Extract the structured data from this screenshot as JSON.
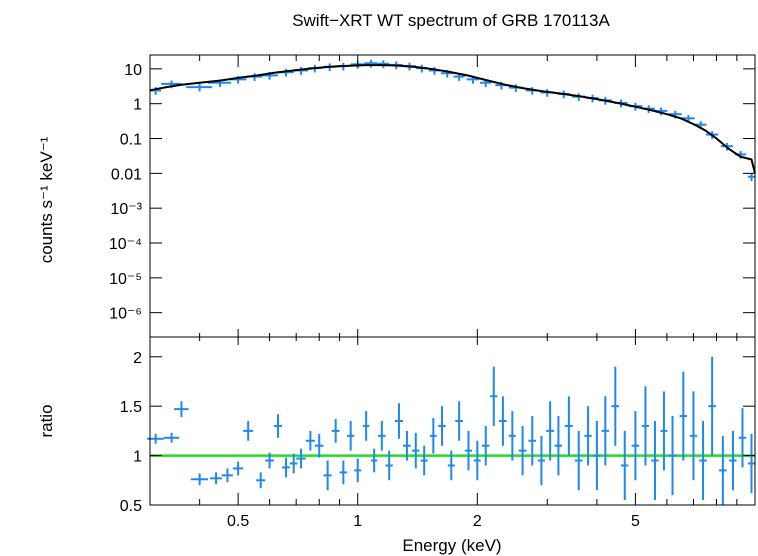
{
  "title": "Swift−XRT WT spectrum of GRB 170113A",
  "colors": {
    "data": "#1e88f0",
    "model": "#000000",
    "unity": "#22dd22",
    "axes": "#000000"
  },
  "chart_data": [
    {
      "type": "scatter",
      "panel": "spectrum",
      "title": "Swift−XRT WT spectrum of GRB 170113A",
      "ylabel": "counts s⁻¹ keV⁻¹",
      "xscale": "log",
      "yscale": "log",
      "xlim": [
        0.3,
        10
      ],
      "ylim": [
        2e-07,
        25
      ],
      "yticks": [
        {
          "value": 10,
          "label": "10"
        },
        {
          "value": 1,
          "label": "1"
        },
        {
          "value": 0.1,
          "label": "0.1"
        },
        {
          "value": 0.01,
          "label": "0.01"
        },
        {
          "value": 0.001,
          "label": "10⁻³"
        },
        {
          "value": 0.0001,
          "label": "10⁻⁴"
        },
        {
          "value": 1e-05,
          "label": "10⁻⁵"
        },
        {
          "value": 1e-06,
          "label": "10⁻⁶"
        }
      ],
      "series": [
        {
          "kind": "data",
          "x": [
            0.31,
            0.34,
            0.4,
            0.45,
            0.5,
            0.55,
            0.6,
            0.66,
            0.72,
            0.78,
            0.85,
            0.92,
            1.0,
            1.08,
            1.16,
            1.25,
            1.35,
            1.45,
            1.56,
            1.68,
            1.8,
            1.95,
            2.1,
            2.3,
            2.5,
            2.75,
            3.0,
            3.3,
            3.6,
            3.9,
            4.2,
            4.6,
            5.0,
            5.4,
            5.8,
            6.3,
            6.8,
            7.3,
            7.8,
            8.5,
            9.2,
            9.8
          ],
          "y": [
            2.4,
            3.7,
            3.0,
            4.0,
            5.0,
            6.0,
            6.5,
            8.0,
            9.0,
            10.5,
            11.5,
            12.0,
            13.5,
            14.5,
            14.0,
            13.0,
            12.0,
            10.5,
            9.0,
            7.5,
            6.0,
            5.0,
            4.0,
            3.4,
            2.9,
            2.4,
            2.1,
            1.9,
            1.6,
            1.45,
            1.25,
            1.05,
            0.85,
            0.72,
            0.62,
            0.5,
            0.38,
            0.25,
            0.13,
            0.06,
            0.035,
            0.008
          ],
          "xerr": [
            0.01,
            0.02,
            0.03,
            0.03,
            0.025,
            0.025,
            0.03,
            0.03,
            0.03,
            0.03,
            0.03,
            0.03,
            0.04,
            0.04,
            0.04,
            0.05,
            0.05,
            0.05,
            0.05,
            0.06,
            0.06,
            0.07,
            0.07,
            0.08,
            0.1,
            0.1,
            0.12,
            0.12,
            0.14,
            0.14,
            0.16,
            0.18,
            0.2,
            0.2,
            0.22,
            0.24,
            0.25,
            0.25,
            0.28,
            0.3,
            0.3,
            0.2
          ]
        },
        {
          "kind": "model",
          "x": [
            0.3,
            0.31,
            0.33,
            0.36,
            0.4,
            0.45,
            0.5,
            0.56,
            0.62,
            0.7,
            0.78,
            0.86,
            0.95,
            1.05,
            1.15,
            1.25,
            1.4,
            1.55,
            1.7,
            1.9,
            2.1,
            2.35,
            2.6,
            2.9,
            3.2,
            3.6,
            4.0,
            4.5,
            5.0,
            5.5,
            6.0,
            6.5,
            7.0,
            7.5,
            8.0,
            8.6,
            9.2,
            9.8,
            10.0
          ],
          "y": [
            2.4,
            2.6,
            3.0,
            3.5,
            4.0,
            4.6,
            5.5,
            6.5,
            7.8,
            9.2,
            10.5,
            11.6,
            12.3,
            12.8,
            12.8,
            12.5,
            11.3,
            9.8,
            8.2,
            6.4,
            4.8,
            3.5,
            2.8,
            2.3,
            2.0,
            1.65,
            1.35,
            1.05,
            0.82,
            0.64,
            0.5,
            0.38,
            0.26,
            0.17,
            0.1,
            0.05,
            0.03,
            0.025,
            0.01
          ]
        }
      ]
    },
    {
      "type": "scatter",
      "panel": "ratio",
      "xlabel": "Energy (keV)",
      "ylabel": "ratio",
      "xscale": "log",
      "xlim": [
        0.3,
        10
      ],
      "ylim": [
        0.5,
        2.2
      ],
      "xticks": [
        {
          "value": 0.5,
          "label": "0.5"
        },
        {
          "value": 1,
          "label": "1"
        },
        {
          "value": 2,
          "label": "2"
        },
        {
          "value": 5,
          "label": "5"
        }
      ],
      "yticks": [
        {
          "value": 0.5,
          "label": "0.5"
        },
        {
          "value": 1,
          "label": "1"
        },
        {
          "value": 1.5,
          "label": "1.5"
        },
        {
          "value": 2,
          "label": "2"
        }
      ],
      "reference_line": 1,
      "series": [
        {
          "kind": "data",
          "x": [
            0.31,
            0.34,
            0.36,
            0.4,
            0.44,
            0.47,
            0.5,
            0.53,
            0.57,
            0.6,
            0.63,
            0.66,
            0.69,
            0.72,
            0.76,
            0.8,
            0.84,
            0.88,
            0.92,
            0.96,
            1.0,
            1.05,
            1.1,
            1.15,
            1.2,
            1.27,
            1.33,
            1.4,
            1.47,
            1.55,
            1.63,
            1.72,
            1.8,
            1.9,
            2.0,
            2.1,
            2.2,
            2.32,
            2.45,
            2.6,
            2.75,
            2.9,
            3.05,
            3.2,
            3.4,
            3.6,
            3.8,
            4.0,
            4.2,
            4.45,
            4.7,
            5.0,
            5.3,
            5.6,
            5.9,
            6.2,
            6.6,
            7.0,
            7.4,
            7.8,
            8.3,
            8.8,
            9.3,
            9.8
          ],
          "y": [
            1.17,
            1.18,
            1.47,
            0.76,
            0.77,
            0.8,
            0.87,
            1.25,
            0.75,
            0.95,
            1.3,
            0.88,
            0.92,
            0.97,
            1.15,
            1.1,
            0.8,
            1.25,
            0.83,
            1.2,
            0.85,
            1.3,
            0.95,
            1.2,
            0.9,
            1.35,
            1.1,
            1.05,
            0.95,
            1.2,
            1.3,
            0.9,
            1.35,
            1.05,
            0.95,
            1.1,
            1.6,
            1.35,
            1.2,
            1.05,
            1.15,
            0.95,
            1.25,
            1.1,
            1.3,
            0.95,
            1.2,
            1.0,
            1.25,
            1.5,
            0.9,
            1.1,
            1.3,
            0.95,
            1.25,
            1.0,
            1.4,
            1.2,
            0.95,
            1.5,
            0.85,
            0.95,
            1.18,
            0.92
          ],
          "xerr": [
            0.015,
            0.015,
            0.015,
            0.02,
            0.015,
            0.015,
            0.015,
            0.015,
            0.015,
            0.015,
            0.015,
            0.015,
            0.015,
            0.02,
            0.02,
            0.02,
            0.02,
            0.02,
            0.02,
            0.02,
            0.02,
            0.02,
            0.02,
            0.025,
            0.025,
            0.03,
            0.03,
            0.03,
            0.03,
            0.03,
            0.035,
            0.035,
            0.04,
            0.04,
            0.04,
            0.045,
            0.045,
            0.05,
            0.05,
            0.06,
            0.06,
            0.06,
            0.07,
            0.07,
            0.08,
            0.08,
            0.08,
            0.09,
            0.09,
            0.1,
            0.1,
            0.11,
            0.11,
            0.12,
            0.12,
            0.13,
            0.14,
            0.15,
            0.16,
            0.17,
            0.18,
            0.19,
            0.2,
            0.2
          ],
          "yerr": [
            0.05,
            0.05,
            0.08,
            0.06,
            0.06,
            0.07,
            0.07,
            0.1,
            0.08,
            0.08,
            0.12,
            0.1,
            0.1,
            0.1,
            0.1,
            0.12,
            0.15,
            0.12,
            0.12,
            0.15,
            0.12,
            0.15,
            0.12,
            0.15,
            0.15,
            0.18,
            0.15,
            0.18,
            0.15,
            0.18,
            0.2,
            0.15,
            0.2,
            0.2,
            0.2,
            0.2,
            0.3,
            0.25,
            0.25,
            0.25,
            0.25,
            0.25,
            0.3,
            0.3,
            0.3,
            0.3,
            0.3,
            0.35,
            0.35,
            0.4,
            0.35,
            0.35,
            0.4,
            0.4,
            0.4,
            0.4,
            0.45,
            0.45,
            0.4,
            0.5,
            0.35,
            0.3,
            0.3,
            0.3
          ]
        }
      ]
    }
  ]
}
